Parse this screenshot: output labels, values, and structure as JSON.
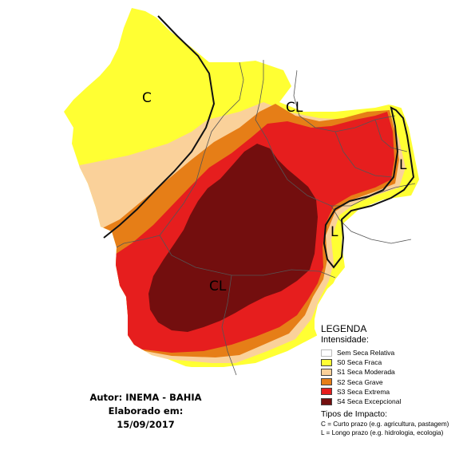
{
  "map": {
    "impact_labels": {
      "north": "C",
      "north_coast": "CL",
      "center": "CL",
      "east_upper": "L",
      "east_lower": "L"
    }
  },
  "legend": {
    "title": "LEGENDA",
    "intensity_label": "Intensidade:",
    "items": [
      {
        "label": "Sem Seca Relativa",
        "color": "#ffffff"
      },
      {
        "label": "S0 Seca Fraca",
        "color": "#ffff33"
      },
      {
        "label": "S1 Seca Moderada",
        "color": "#fad19a"
      },
      {
        "label": "S2 Seca Grave",
        "color": "#e67e17"
      },
      {
        "label": "S3 Seca Extrema",
        "color": "#e61e1e"
      },
      {
        "label": "S4 Seca Excepcional",
        "color": "#730e0e"
      }
    ],
    "impact_title": "Tipos de Impacto:",
    "impacts": [
      "C = Curto prazo (e.g. agricultura, pastagem)",
      "L = Longo prazo (e.g. hidrologia, ecologia)"
    ]
  },
  "credit": {
    "author": "Autor: INEMA - BAHIA",
    "date": "Elaborado em: 15/09/2017"
  }
}
